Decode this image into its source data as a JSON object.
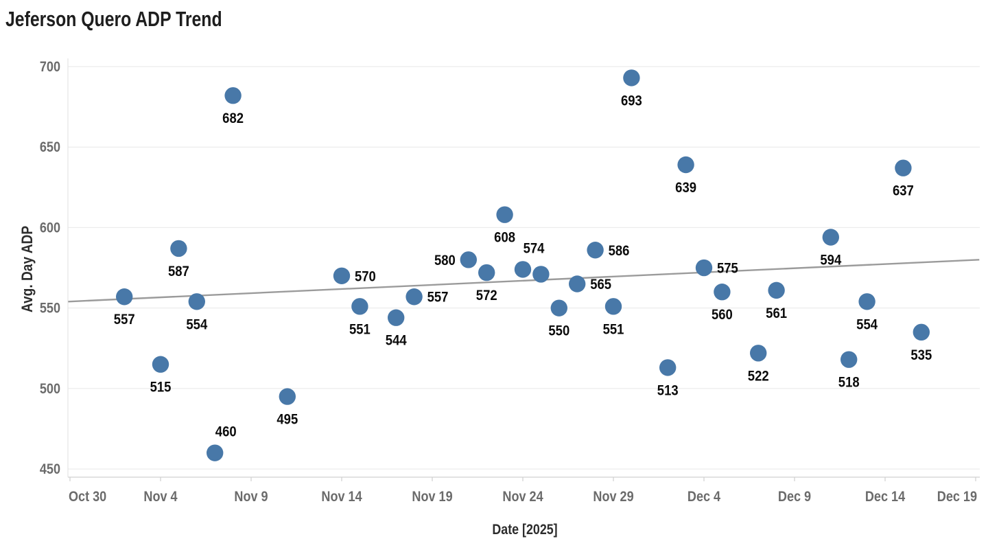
{
  "chart_data": {
    "type": "scatter",
    "title": "Jeferson Quero ADP Trend",
    "xlabel": "Date [2025]",
    "ylabel": "Avg. Day ADP",
    "ylim": [
      450,
      700
    ],
    "y_ticks": [
      700,
      650,
      600,
      550,
      500,
      450
    ],
    "x_ticks": [
      {
        "label": "Oct 30",
        "d": 0
      },
      {
        "label": "Nov 4",
        "d": 5
      },
      {
        "label": "Nov 9",
        "d": 10
      },
      {
        "label": "Nov 14",
        "d": 15
      },
      {
        "label": "Nov 19",
        "d": 20
      },
      {
        "label": "Nov 24",
        "d": 25
      },
      {
        "label": "Nov 29",
        "d": 30
      },
      {
        "label": "Dec 4",
        "d": 35
      },
      {
        "label": "Dec 9",
        "d": 40
      },
      {
        "label": "Dec 14",
        "d": 45
      },
      {
        "label": "Dec 19",
        "d": 50
      }
    ],
    "grid": "horizontal",
    "legend": "none",
    "point_color": "#4878a8",
    "label_color": "#0b0b0b",
    "trend_color": "#9b9b9b",
    "grid_color": "#ececec",
    "axis_line_color": "#d9d9d9",
    "tick_text_color": "#6b6b6b",
    "trend": {
      "start_d": -0.1,
      "start_value": 554,
      "end_d": 50.2,
      "end_value": 580
    },
    "points": [
      {
        "date": "Nov 2",
        "d": 3,
        "value": 557,
        "label": "557",
        "label_pos": "below"
      },
      {
        "date": "Nov 4",
        "d": 5,
        "value": 515,
        "label": "515",
        "label_pos": "below"
      },
      {
        "date": "Nov 5",
        "d": 6,
        "value": 587,
        "label": "587",
        "label_pos": "below"
      },
      {
        "date": "Nov 6",
        "d": 7,
        "value": 554,
        "label": "554",
        "label_pos": "below"
      },
      {
        "date": "Nov 7",
        "d": 8,
        "value": 460,
        "label": "460",
        "label_pos": "above-right"
      },
      {
        "date": "Nov 8",
        "d": 9,
        "value": 682,
        "label": "682",
        "label_pos": "below"
      },
      {
        "date": "Nov 11",
        "d": 12,
        "value": 495,
        "label": "495",
        "label_pos": "below"
      },
      {
        "date": "Nov 14",
        "d": 15,
        "value": 570,
        "label": "570",
        "label_pos": "right"
      },
      {
        "date": "Nov 15",
        "d": 16,
        "value": 551,
        "label": "551",
        "label_pos": "below"
      },
      {
        "date": "Nov 17",
        "d": 18,
        "value": 544,
        "label": "544",
        "label_pos": "below"
      },
      {
        "date": "Nov 18",
        "d": 19,
        "value": 557,
        "label": "557",
        "label_pos": "right"
      },
      {
        "date": "Nov 21",
        "d": 22,
        "value": 580,
        "label": "580",
        "label_pos": "left"
      },
      {
        "date": "Nov 22",
        "d": 23,
        "value": 572,
        "label": "572",
        "label_pos": "below"
      },
      {
        "date": "Nov 23",
        "d": 24,
        "value": 608,
        "label": "608",
        "label_pos": "below"
      },
      {
        "date": "Nov 24",
        "d": 25,
        "value": 574,
        "label": "574",
        "label_pos": "above-right"
      },
      {
        "date": "Nov 25",
        "d": 26,
        "value": 571,
        "label": "",
        "label_pos": "none"
      },
      {
        "date": "Nov 26",
        "d": 27,
        "value": 550,
        "label": "550",
        "label_pos": "below"
      },
      {
        "date": "Nov 27",
        "d": 28,
        "value": 565,
        "label": "565",
        "label_pos": "right"
      },
      {
        "date": "Nov 28",
        "d": 29,
        "value": 586,
        "label": "586",
        "label_pos": "right"
      },
      {
        "date": "Nov 29",
        "d": 30,
        "value": 551,
        "label": "551",
        "label_pos": "below"
      },
      {
        "date": "Nov 30",
        "d": 31,
        "value": 693,
        "label": "693",
        "label_pos": "below"
      },
      {
        "date": "Dec 2",
        "d": 33,
        "value": 513,
        "label": "513",
        "label_pos": "below"
      },
      {
        "date": "Dec 3",
        "d": 34,
        "value": 639,
        "label": "639",
        "label_pos": "below"
      },
      {
        "date": "Dec 4",
        "d": 35,
        "value": 575,
        "label": "575",
        "label_pos": "right"
      },
      {
        "date": "Dec 5",
        "d": 36,
        "value": 560,
        "label": "560",
        "label_pos": "below"
      },
      {
        "date": "Dec 7",
        "d": 38,
        "value": 522,
        "label": "522",
        "label_pos": "below"
      },
      {
        "date": "Dec 8",
        "d": 39,
        "value": 561,
        "label": "561",
        "label_pos": "below"
      },
      {
        "date": "Dec 11",
        "d": 42,
        "value": 594,
        "label": "594",
        "label_pos": "below"
      },
      {
        "date": "Dec 12",
        "d": 43,
        "value": 518,
        "label": "518",
        "label_pos": "below"
      },
      {
        "date": "Dec 13",
        "d": 44,
        "value": 554,
        "label": "554",
        "label_pos": "below"
      },
      {
        "date": "Dec 15",
        "d": 46,
        "value": 637,
        "label": "637",
        "label_pos": "below"
      },
      {
        "date": "Dec 16",
        "d": 47,
        "value": 535,
        "label": "535",
        "label_pos": "below"
      }
    ]
  }
}
